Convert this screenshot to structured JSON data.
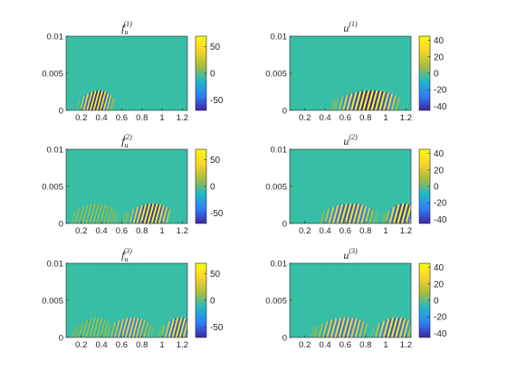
{
  "chart_data": [
    {
      "type": "heatmap",
      "title": {
        "base": "f",
        "sub": "u",
        "sup": "(1)"
      },
      "x_ticks": [
        "0.2",
        "0.4",
        "0.6",
        "0.8",
        "1",
        "1.2"
      ],
      "x_tick_values": [
        0.2,
        0.4,
        0.6,
        0.8,
        1.0,
        1.2
      ],
      "xlim": [
        0.05,
        1.25
      ],
      "y_ticks": [
        "0",
        "0.005",
        "0.01"
      ],
      "y_tick_values": [
        0,
        0.005,
        0.01
      ],
      "ylim": [
        0,
        0.01
      ],
      "colorbar": {
        "ticks": [
          "50",
          "0",
          "-50"
        ],
        "tick_values": [
          50,
          0,
          -50
        ],
        "range": [
          -70,
          70
        ]
      },
      "colormap": [
        "#3e26a8",
        "#2f80f8",
        "#1fb8c6",
        "#a5be3b",
        "#f9d32b",
        "#f9fb0e"
      ],
      "background_color": "#22c0b8",
      "bursts": [
        {
          "x_start": 0.15,
          "x_end": 0.5,
          "x_peak": 0.32,
          "amplitude": 70,
          "wavelength": 0.033
        }
      ]
    },
    {
      "type": "heatmap",
      "title": {
        "base": "u",
        "sub": "",
        "sup": "(1)"
      },
      "x_ticks": [
        "0.2",
        "0.4",
        "0.6",
        "0.8",
        "1",
        "1.2"
      ],
      "x_tick_values": [
        0.2,
        0.4,
        0.6,
        0.8,
        1.0,
        1.2
      ],
      "xlim": [
        0.05,
        1.25
      ],
      "y_ticks": [
        "0",
        "0.005",
        "0.01"
      ],
      "y_tick_values": [
        0,
        0.005,
        0.01
      ],
      "ylim": [
        0,
        0.01
      ],
      "colorbar": {
        "ticks": [
          "40",
          "20",
          "0",
          "-20",
          "-40"
        ],
        "tick_values": [
          40,
          20,
          0,
          -20,
          -40
        ],
        "range": [
          -45,
          45
        ]
      },
      "colormap": [
        "#3e26a8",
        "#2f80f8",
        "#1fb8c6",
        "#a5be3b",
        "#f9d32b",
        "#f9fb0e"
      ],
      "background_color": "#22c0b8",
      "bursts": [
        {
          "x_start": 0.45,
          "x_end": 1.1,
          "x_peak": 0.8,
          "amplitude": 45,
          "wavelength": 0.04
        }
      ]
    },
    {
      "type": "heatmap",
      "title": {
        "base": "f",
        "sub": "u",
        "sup": "(2)"
      },
      "x_ticks": [
        "0.2",
        "0.4",
        "0.6",
        "0.8",
        "1",
        "1.2"
      ],
      "x_tick_values": [
        0.2,
        0.4,
        0.6,
        0.8,
        1.0,
        1.2
      ],
      "xlim": [
        0.05,
        1.25
      ],
      "y_ticks": [
        "0",
        "0.005",
        "0.01"
      ],
      "y_tick_values": [
        0,
        0.005,
        0.01
      ],
      "ylim": [
        0,
        0.01
      ],
      "colorbar": {
        "ticks": [
          "50",
          "0",
          "-50"
        ],
        "tick_values": [
          50,
          0,
          -50
        ],
        "range": [
          -70,
          70
        ]
      },
      "colormap": [
        "#3e26a8",
        "#2f80f8",
        "#1fb8c6",
        "#a5be3b",
        "#f9d32b",
        "#f9fb0e"
      ],
      "background_color": "#22c0b8",
      "bursts": [
        {
          "x_start": 0.1,
          "x_end": 0.55,
          "x_peak": 0.3,
          "amplitude": 15,
          "wavelength": 0.035
        },
        {
          "x_start": 0.6,
          "x_end": 1.05,
          "x_peak": 0.85,
          "amplitude": 65,
          "wavelength": 0.036
        }
      ]
    },
    {
      "type": "heatmap",
      "title": {
        "base": "u",
        "sub": "",
        "sup": "(2)"
      },
      "x_ticks": [
        "0.2",
        "0.4",
        "0.6",
        "0.8",
        "1",
        "1.2"
      ],
      "x_tick_values": [
        0.2,
        0.4,
        0.6,
        0.8,
        1.0,
        1.2
      ],
      "xlim": [
        0.05,
        1.25
      ],
      "y_ticks": [
        "0",
        "0.005",
        "0.01"
      ],
      "y_tick_values": [
        0,
        0.005,
        0.01
      ],
      "ylim": [
        0,
        0.01
      ],
      "colorbar": {
        "ticks": [
          "40",
          "20",
          "0",
          "-20",
          "-40"
        ],
        "tick_values": [
          40,
          20,
          0,
          -20,
          -40
        ],
        "range": [
          -45,
          45
        ]
      },
      "colormap": [
        "#3e26a8",
        "#2f80f8",
        "#1fb8c6",
        "#a5be3b",
        "#f9d32b",
        "#f9fb0e"
      ],
      "background_color": "#22c0b8",
      "bursts": [
        {
          "x_start": 0.35,
          "x_end": 0.9,
          "x_peak": 0.6,
          "amplitude": 35,
          "wavelength": 0.04
        },
        {
          "x_start": 0.95,
          "x_end": 1.25,
          "x_peak": 1.12,
          "amplitude": 42,
          "wavelength": 0.04
        }
      ]
    },
    {
      "type": "heatmap",
      "title": {
        "base": "f",
        "sub": "u",
        "sup": "(3)"
      },
      "x_ticks": [
        "0.2",
        "0.4",
        "0.6",
        "0.8",
        "1",
        "1.2"
      ],
      "x_tick_values": [
        0.2,
        0.4,
        0.6,
        0.8,
        1.0,
        1.2
      ],
      "xlim": [
        0.05,
        1.25
      ],
      "y_ticks": [
        "0",
        "0.005",
        "0.01"
      ],
      "y_tick_values": [
        0,
        0.005,
        0.01
      ],
      "ylim": [
        0,
        0.01
      ],
      "colorbar": {
        "ticks": [
          "50",
          "0",
          "-50"
        ],
        "tick_values": [
          50,
          0,
          -50
        ],
        "range": [
          -70,
          70
        ]
      },
      "colormap": [
        "#3e26a8",
        "#2f80f8",
        "#1fb8c6",
        "#a5be3b",
        "#f9d32b",
        "#f9fb0e"
      ],
      "background_color": "#22c0b8",
      "bursts": [
        {
          "x_start": 0.1,
          "x_end": 0.45,
          "x_peak": 0.3,
          "amplitude": 15,
          "wavelength": 0.035
        },
        {
          "x_start": 0.45,
          "x_end": 0.9,
          "x_peak": 0.65,
          "amplitude": 40,
          "wavelength": 0.036
        },
        {
          "x_start": 0.95,
          "x_end": 1.25,
          "x_peak": 1.12,
          "amplitude": 55,
          "wavelength": 0.036
        }
      ]
    },
    {
      "type": "heatmap",
      "title": {
        "base": "u",
        "sub": "",
        "sup": "(3)"
      },
      "x_ticks": [
        "0.2",
        "0.4",
        "0.6",
        "0.8",
        "1",
        "1.2"
      ],
      "x_tick_values": [
        0.2,
        0.4,
        0.6,
        0.8,
        1.0,
        1.2
      ],
      "xlim": [
        0.05,
        1.25
      ],
      "y_ticks": [
        "0",
        "0.005",
        "0.01"
      ],
      "y_tick_values": [
        0,
        0.005,
        0.01
      ],
      "ylim": [
        0,
        0.01
      ],
      "colorbar": {
        "ticks": [
          "40",
          "20",
          "0",
          "-20",
          "-40"
        ],
        "tick_values": [
          40,
          20,
          0,
          -20,
          -40
        ],
        "range": [
          -45,
          45
        ]
      },
      "colormap": [
        "#3e26a8",
        "#2f80f8",
        "#1fb8c6",
        "#a5be3b",
        "#f9d32b",
        "#f9fb0e"
      ],
      "background_color": "#22c0b8",
      "bursts": [
        {
          "x_start": 0.25,
          "x_end": 0.8,
          "x_peak": 0.55,
          "amplitude": 30,
          "wavelength": 0.04
        },
        {
          "x_start": 0.85,
          "x_end": 1.25,
          "x_peak": 1.05,
          "amplitude": 35,
          "wavelength": 0.04
        }
      ]
    }
  ]
}
